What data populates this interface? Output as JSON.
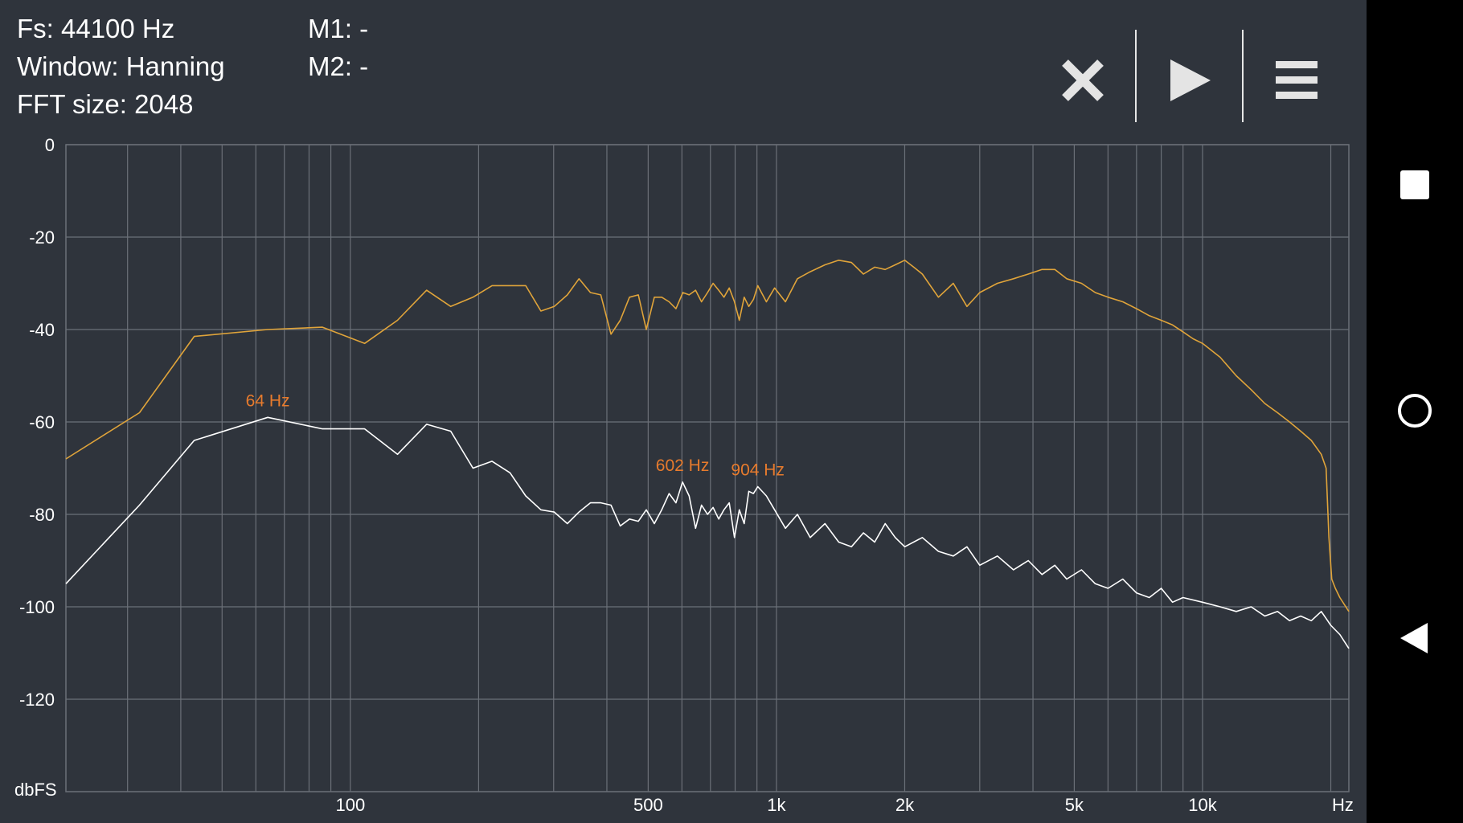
{
  "info": {
    "fs": "Fs: 44100 Hz",
    "window": "Window: Hanning",
    "fft": "FFT size: 2048",
    "m1": "M1: -",
    "m2": "M2: -"
  },
  "toolbar": {
    "close_icon": "close-icon",
    "play_icon": "play-icon",
    "menu_icon": "menu-icon"
  },
  "navbar": {
    "recents_icon": "square-icon",
    "home_icon": "circle-icon",
    "back_icon": "triangle-back-icon"
  },
  "colors": {
    "background": "#2f343c",
    "peak_series": "#e0a43a",
    "avg_series": "#ffffff",
    "marker_text": "#e77b2d",
    "grid": "#6b7078"
  },
  "chart_data": {
    "type": "line",
    "x_scale": "log",
    "xlim": [
      21.5,
      22050
    ],
    "ylim": [
      -140,
      0
    ],
    "y_unit_label": "dbFS",
    "x_unit_label": "Hz",
    "y_ticks": [
      0,
      -20,
      -40,
      -60,
      -80,
      -100,
      -120
    ],
    "x_tick_labels": [
      {
        "value": 100,
        "label": "100"
      },
      {
        "value": 500,
        "label": "500"
      },
      {
        "value": 1000,
        "label": "1k"
      },
      {
        "value": 2000,
        "label": "2k"
      },
      {
        "value": 5000,
        "label": "5k"
      },
      {
        "value": 10000,
        "label": "10k"
      }
    ],
    "x_gridlines": [
      30,
      40,
      50,
      60,
      70,
      80,
      90,
      100,
      200,
      300,
      400,
      500,
      600,
      700,
      800,
      900,
      1000,
      2000,
      3000,
      4000,
      5000,
      6000,
      7000,
      8000,
      9000,
      10000,
      20000
    ],
    "grid": true,
    "series": [
      {
        "values": [
          [
            21.5,
            -68
          ],
          [
            32,
            -58
          ],
          [
            43,
            -41.5
          ],
          [
            64,
            -40
          ],
          [
            86,
            -39.5
          ],
          [
            108,
            -43
          ],
          [
            129,
            -38
          ],
          [
            151,
            -31.5
          ],
          [
            172,
            -35
          ],
          [
            194,
            -33
          ],
          [
            215,
            -30.5
          ],
          [
            237,
            -30.5
          ],
          [
            258,
            -30.5
          ],
          [
            280,
            -36
          ],
          [
            301,
            -35
          ],
          [
            323,
            -32.5
          ],
          [
            344,
            -29
          ],
          [
            366,
            -32
          ],
          [
            387,
            -32.5
          ],
          [
            409,
            -41
          ],
          [
            430,
            -38
          ],
          [
            452,
            -33
          ],
          [
            474,
            -32.5
          ],
          [
            495,
            -40
          ],
          [
            517,
            -33
          ],
          [
            538,
            -33
          ],
          [
            560,
            -34
          ],
          [
            581,
            -35.5
          ],
          [
            603,
            -32
          ],
          [
            624,
            -32.5
          ],
          [
            646,
            -31.5
          ],
          [
            667,
            -34
          ],
          [
            689,
            -32
          ],
          [
            710,
            -30
          ],
          [
            732,
            -31.5
          ],
          [
            753,
            -33
          ],
          [
            775,
            -31
          ],
          [
            797,
            -34
          ],
          [
            818,
            -38
          ],
          [
            840,
            -33
          ],
          [
            861,
            -35
          ],
          [
            883,
            -33.5
          ],
          [
            904,
            -30.5
          ],
          [
            947,
            -34
          ],
          [
            990,
            -31
          ],
          [
            1050,
            -34
          ],
          [
            1120,
            -29
          ],
          [
            1200,
            -27.5
          ],
          [
            1300,
            -26
          ],
          [
            1400,
            -25
          ],
          [
            1500,
            -25.5
          ],
          [
            1600,
            -28
          ],
          [
            1700,
            -26.5
          ],
          [
            1800,
            -27
          ],
          [
            1900,
            -26
          ],
          [
            2000,
            -25
          ],
          [
            2100,
            -26.5
          ],
          [
            2200,
            -28
          ],
          [
            2400,
            -33
          ],
          [
            2600,
            -30
          ],
          [
            2800,
            -35
          ],
          [
            3000,
            -32
          ],
          [
            3300,
            -30
          ],
          [
            3600,
            -29
          ],
          [
            3900,
            -28
          ],
          [
            4200,
            -27
          ],
          [
            4500,
            -27
          ],
          [
            4800,
            -29
          ],
          [
            5200,
            -30
          ],
          [
            5600,
            -32
          ],
          [
            6000,
            -33
          ],
          [
            6500,
            -34
          ],
          [
            7000,
            -35.5
          ],
          [
            7500,
            -37
          ],
          [
            8000,
            -38
          ],
          [
            8500,
            -39
          ],
          [
            9000,
            -40.5
          ],
          [
            9500,
            -42
          ],
          [
            10000,
            -43
          ],
          [
            11000,
            -46
          ],
          [
            12000,
            -50
          ],
          [
            13000,
            -53
          ],
          [
            14000,
            -56
          ],
          [
            15000,
            -58
          ],
          [
            16000,
            -60
          ],
          [
            17000,
            -62
          ],
          [
            18000,
            -64
          ],
          [
            19000,
            -67
          ],
          [
            19500,
            -70
          ],
          [
            19800,
            -85
          ],
          [
            20100,
            -94
          ],
          [
            20500,
            -96
          ],
          [
            21000,
            -98
          ],
          [
            22050,
            -101
          ]
        ]
      },
      {
        "values": [
          [
            21.5,
            -95
          ],
          [
            32,
            -78
          ],
          [
            43,
            -64
          ],
          [
            64,
            -59
          ],
          [
            86,
            -61.5
          ],
          [
            108,
            -61.5
          ],
          [
            129,
            -67
          ],
          [
            151,
            -60.5
          ],
          [
            172,
            -62
          ],
          [
            194,
            -70
          ],
          [
            215,
            -68.5
          ],
          [
            237,
            -71
          ],
          [
            258,
            -76
          ],
          [
            280,
            -79
          ],
          [
            301,
            -79.5
          ],
          [
            323,
            -82
          ],
          [
            344,
            -79.5
          ],
          [
            366,
            -77.5
          ],
          [
            387,
            -77.5
          ],
          [
            409,
            -78
          ],
          [
            430,
            -82.5
          ],
          [
            452,
            -81
          ],
          [
            474,
            -81.5
          ],
          [
            495,
            -79
          ],
          [
            517,
            -82
          ],
          [
            538,
            -79
          ],
          [
            560,
            -75.5
          ],
          [
            581,
            -77.5
          ],
          [
            602,
            -73
          ],
          [
            624,
            -76
          ],
          [
            646,
            -83
          ],
          [
            667,
            -78
          ],
          [
            689,
            -80
          ],
          [
            710,
            -78.5
          ],
          [
            732,
            -81
          ],
          [
            753,
            -79
          ],
          [
            775,
            -77.5
          ],
          [
            797,
            -85
          ],
          [
            818,
            -79
          ],
          [
            840,
            -82
          ],
          [
            861,
            -75
          ],
          [
            883,
            -75.5
          ],
          [
            904,
            -74
          ],
          [
            947,
            -76
          ],
          [
            990,
            -79
          ],
          [
            1050,
            -83
          ],
          [
            1120,
            -80
          ],
          [
            1200,
            -85
          ],
          [
            1300,
            -82
          ],
          [
            1400,
            -86
          ],
          [
            1500,
            -87
          ],
          [
            1600,
            -84
          ],
          [
            1700,
            -86
          ],
          [
            1800,
            -82
          ],
          [
            1900,
            -85
          ],
          [
            2000,
            -87
          ],
          [
            2200,
            -85
          ],
          [
            2400,
            -88
          ],
          [
            2600,
            -89
          ],
          [
            2800,
            -87
          ],
          [
            3000,
            -91
          ],
          [
            3300,
            -89
          ],
          [
            3600,
            -92
          ],
          [
            3900,
            -90
          ],
          [
            4200,
            -93
          ],
          [
            4500,
            -91
          ],
          [
            4800,
            -94
          ],
          [
            5200,
            -92
          ],
          [
            5600,
            -95
          ],
          [
            6000,
            -96
          ],
          [
            6500,
            -94
          ],
          [
            7000,
            -97
          ],
          [
            7500,
            -98
          ],
          [
            8000,
            -96
          ],
          [
            8500,
            -99
          ],
          [
            9000,
            -98
          ],
          [
            10000,
            -99
          ],
          [
            11000,
            -100
          ],
          [
            12000,
            -101
          ],
          [
            13000,
            -100
          ],
          [
            14000,
            -102
          ],
          [
            15000,
            -101
          ],
          [
            16000,
            -103
          ],
          [
            17000,
            -102
          ],
          [
            18000,
            -103
          ],
          [
            19000,
            -101
          ],
          [
            20000,
            -104
          ],
          [
            21000,
            -106
          ],
          [
            22050,
            -109
          ]
        ]
      }
    ],
    "annotations": [
      {
        "label": "64 Hz",
        "x": 64,
        "y": -59
      },
      {
        "label": "602 Hz",
        "x": 602,
        "y": -73
      },
      {
        "label": "904 Hz",
        "x": 904,
        "y": -74
      }
    ]
  }
}
